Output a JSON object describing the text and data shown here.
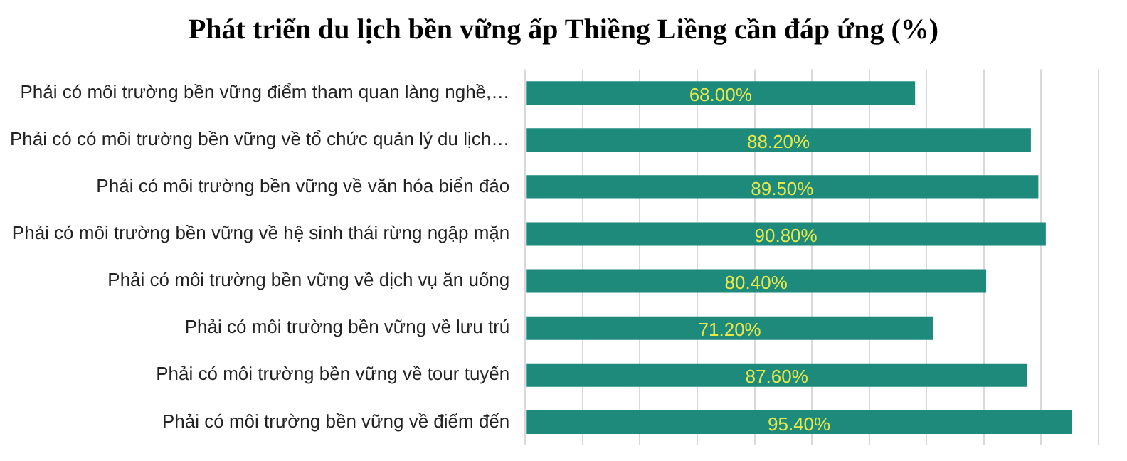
{
  "chart_data": {
    "type": "bar",
    "orientation": "horizontal",
    "title": "Phát triển du lịch bền vững ấp Thiềng Liềng cần đáp ứng (%)",
    "categories": [
      "Phải có môi trường bền vững điểm tham quan làng nghề,…",
      "Phải có có môi trường bền vững về tổ chức quản lý du lịch…",
      "Phải có môi trường bền vững về văn hóa biển đảo",
      "Phải có môi trường bền vững về hệ sinh thái rừng ngập mặn",
      "Phải có môi trường bền vững về dịch vụ ăn uống",
      "Phải có môi trường bền vững về lưu trú",
      "Phải có môi trường bền vững về tour tuyến",
      "Phải có môi trường bền vững về điểm đến"
    ],
    "values": [
      68.0,
      88.2,
      89.5,
      90.8,
      80.4,
      71.2,
      87.6,
      95.4
    ],
    "value_labels": [
      "68.00%",
      "88.20%",
      "89.50%",
      "90.80%",
      "80.40%",
      "71.20%",
      "87.60%",
      "95.40%"
    ],
    "color": "#1e8a7c",
    "xlim": [
      0,
      100
    ],
    "xticks": [
      {
        "value": 0,
        "label": null
      },
      {
        "value": 10,
        "label": null
      },
      {
        "value": 20,
        "label": null
      },
      {
        "value": 30,
        "label": null
      },
      {
        "value": 40,
        "label": null
      },
      {
        "value": 50,
        "label": null
      },
      {
        "value": 60,
        "label": null
      },
      {
        "value": 70,
        "label": null
      },
      {
        "value": 80,
        "label": null
      },
      {
        "value": 90,
        "label": null
      },
      {
        "value": 100,
        "label": null
      }
    ],
    "tick_labels": "y",
    "grid": "x",
    "legend": false
  }
}
